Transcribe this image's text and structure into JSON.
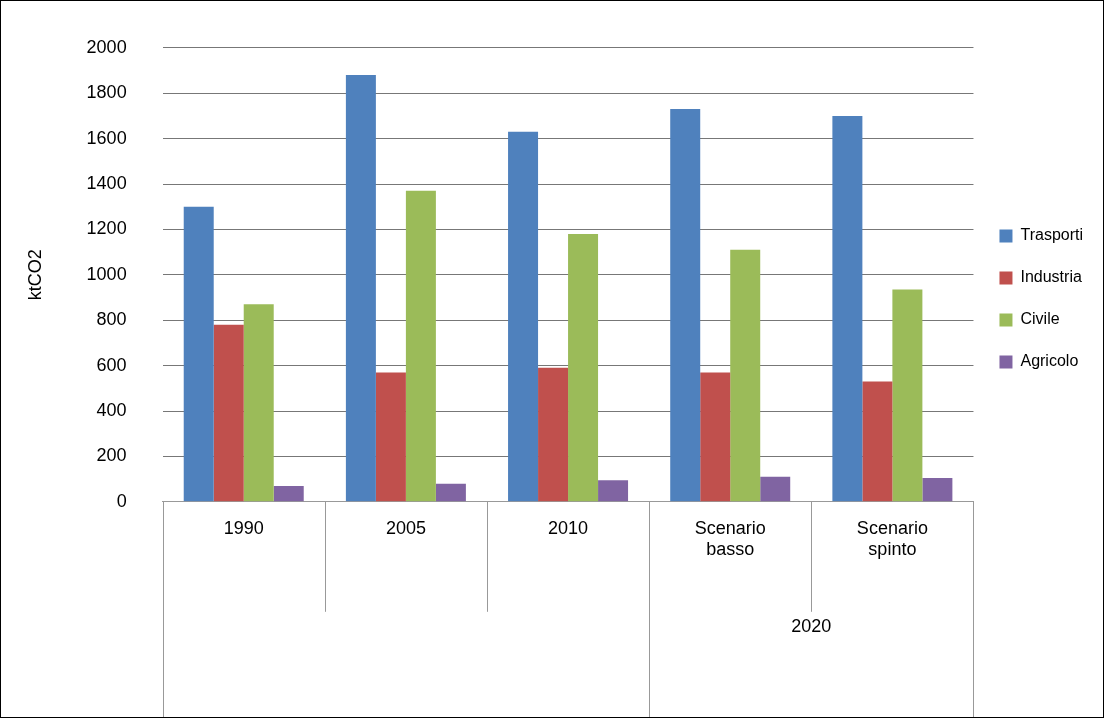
{
  "chart_data": {
    "type": "bar",
    "ylabel": "ktCO2",
    "categories": [
      "1990",
      "2005",
      "2010",
      "Scenario basso",
      "Scenario spinto"
    ],
    "series": [
      {
        "name": "Trasporti",
        "color": "#4f81bd",
        "values": [
          1300,
          1880,
          1630,
          1730,
          1700
        ]
      },
      {
        "name": "Industria",
        "color": "#c0504d",
        "values": [
          780,
          570,
          590,
          570,
          530
        ]
      },
      {
        "name": "Civile",
        "color": "#9bbb59",
        "values": [
          870,
          1370,
          1180,
          1110,
          935
        ]
      },
      {
        "name": "Agricolo",
        "color": "#8064a2",
        "values": [
          70,
          80,
          95,
          110,
          105
        ]
      }
    ],
    "ylim": [
      0,
      2000
    ],
    "yticks": [
      0,
      200,
      400,
      600,
      800,
      1000,
      1200,
      1400,
      1600,
      1800,
      2000
    ],
    "grid": "y",
    "legend": "right",
    "annotations": [
      "2020"
    ]
  }
}
